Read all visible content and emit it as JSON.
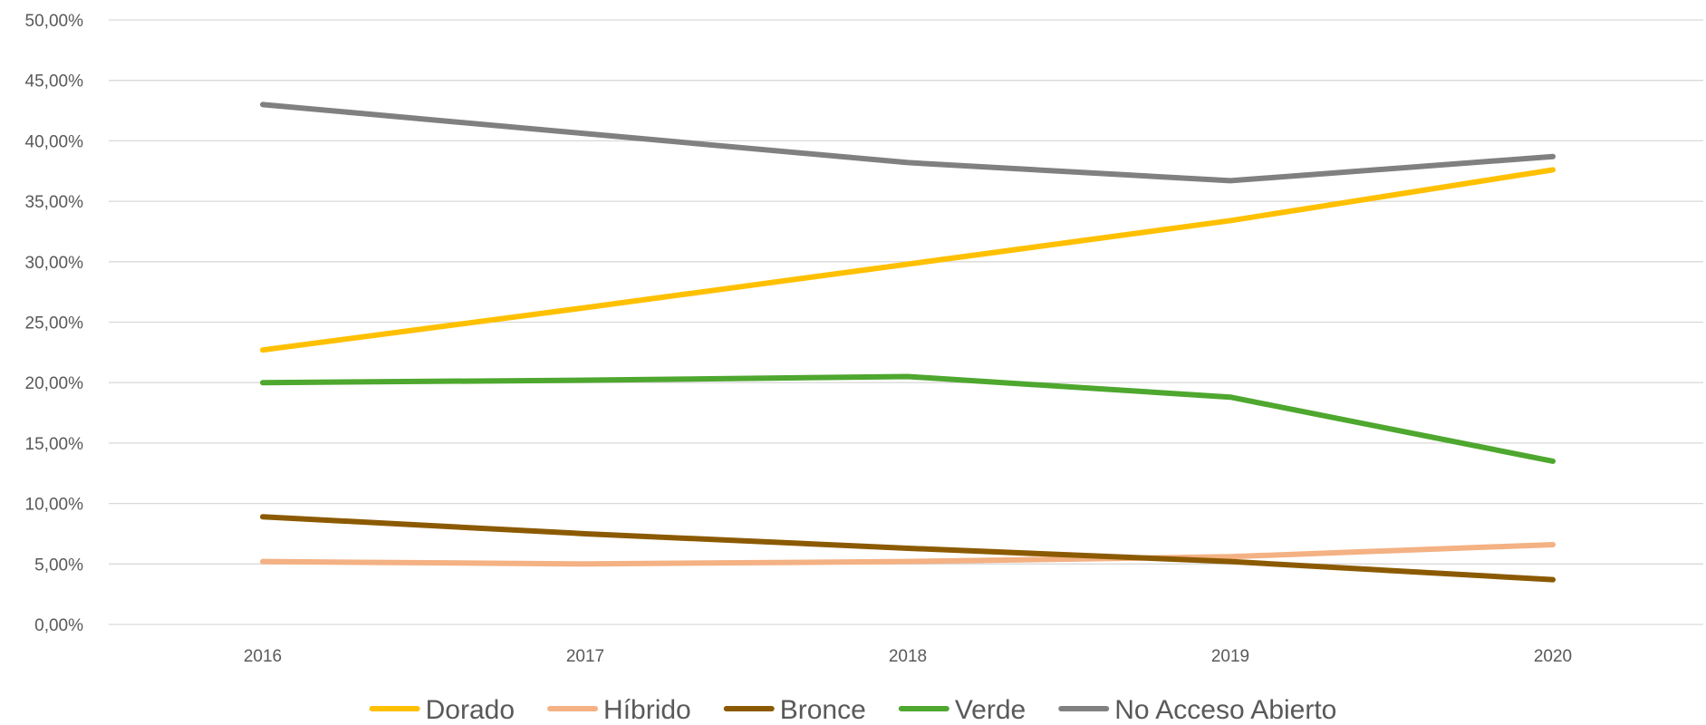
{
  "chart_data": {
    "type": "line",
    "title": "",
    "xlabel": "",
    "ylabel": "",
    "categories": [
      "2016",
      "2017",
      "2018",
      "2019",
      "2020"
    ],
    "ylim": [
      0,
      50
    ],
    "yticks": [
      0,
      5,
      10,
      15,
      20,
      25,
      30,
      35,
      40,
      45,
      50
    ],
    "ytick_labels": [
      "0,00%",
      "5,00%",
      "10,00%",
      "15,00%",
      "20,00%",
      "25,00%",
      "30,00%",
      "35,00%",
      "40,00%",
      "45,00%",
      "50,00%"
    ],
    "grid": true,
    "legend_position": "bottom",
    "series": [
      {
        "name": "Dorado",
        "color": "#FFC000",
        "values": [
          22.7,
          26.2,
          29.8,
          33.4,
          37.6
        ]
      },
      {
        "name": "Híbrido",
        "color": "#F4B183",
        "values": [
          5.2,
          5.0,
          5.2,
          5.6,
          6.6
        ]
      },
      {
        "name": "Bronce",
        "color": "#8B5A00",
        "values": [
          8.9,
          7.5,
          6.3,
          5.2,
          3.7
        ]
      },
      {
        "name": "Verde",
        "color": "#4EA72E",
        "values": [
          20.0,
          20.2,
          20.5,
          18.8,
          13.5
        ]
      },
      {
        "name": "No Acceso Abierto",
        "color": "#808080",
        "values": [
          43.0,
          40.6,
          38.2,
          36.7,
          38.7
        ]
      }
    ]
  }
}
